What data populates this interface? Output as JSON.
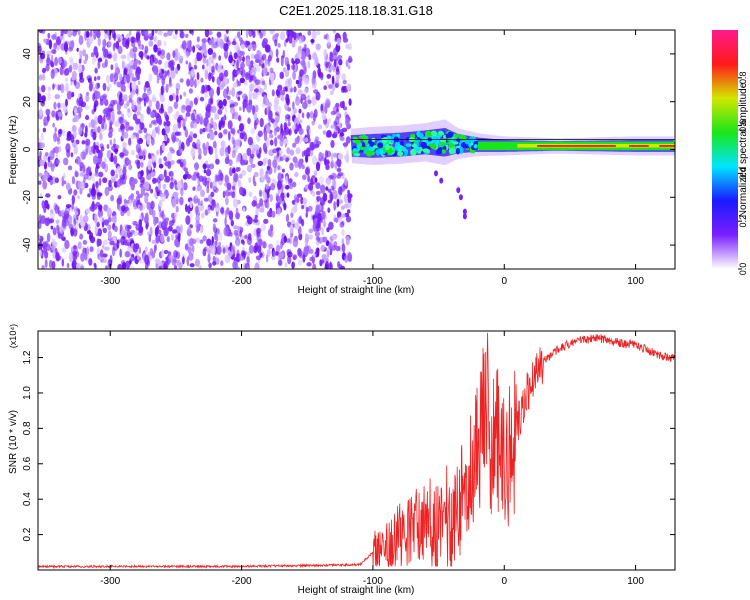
{
  "title": "C2E1.2025.118.18.31.G18",
  "chart_data": [
    {
      "type": "heatmap",
      "title": "C2E1.2025.118.18.31.G18",
      "xlabel": "Height of straight line (km)",
      "ylabel": "Frequency (Hz)",
      "xlim": [
        -355,
        130
      ],
      "ylim": [
        -50,
        50
      ],
      "x_ticks": [
        -300,
        -200,
        -100,
        0,
        100
      ],
      "y_ticks": [
        -40,
        -20,
        0,
        20,
        40
      ],
      "noise_region_x": [
        -355,
        -117
      ],
      "signal_band": [
        {
          "x": -117,
          "freq_center": 1.5,
          "halfwidth": 4.5
        },
        {
          "x": -100,
          "freq_center": 1.5,
          "halfwidth": 5
        },
        {
          "x": -80,
          "freq_center": 2,
          "halfwidth": 5
        },
        {
          "x": -60,
          "freq_center": 3,
          "halfwidth": 5
        },
        {
          "x": -45,
          "freq_center": 3,
          "halfwidth": 6
        },
        {
          "x": -35,
          "freq_center": 2.5,
          "halfwidth": 4
        },
        {
          "x": -20,
          "freq_center": 2,
          "halfwidth": 3
        },
        {
          "x": 0,
          "freq_center": 1.5,
          "halfwidth": 2.5
        },
        {
          "x": 40,
          "freq_center": 1.5,
          "halfwidth": 2
        },
        {
          "x": 100,
          "freq_center": 1.5,
          "halfwidth": 2.5
        },
        {
          "x": 130,
          "freq_center": 1.5,
          "halfwidth": 2.5
        }
      ],
      "colorbar": {
        "label": "Normalized spectral amplitude",
        "range": [
          0,
          1
        ],
        "ticks": [
          0.0,
          0.2,
          0.4,
          0.6,
          0.8
        ],
        "tick_labels": [
          "0.0",
          "0.2",
          "0.4",
          "0.6",
          "0.8"
        ],
        "colors": [
          "#ffffff",
          "#7a1fff",
          "#1a1aff",
          "#00e5ff",
          "#19e619",
          "#d4e600",
          "#ff1a1a",
          "#ff1a8c"
        ]
      }
    },
    {
      "type": "line",
      "xlabel": "Height of straight line (km)",
      "ylabel": "SNR (10 * v/v)",
      "yscale_label": "(x10⁴)",
      "xlim": [
        -355,
        130
      ],
      "ylim": [
        0,
        1.35
      ],
      "x_ticks": [
        -300,
        -200,
        -100,
        0,
        100
      ],
      "y_ticks": [
        0.2,
        0.4,
        0.6,
        0.8,
        1.0,
        1.2
      ],
      "color": "#ee2222",
      "series": [
        {
          "x": [
            -355,
            -300,
            -250,
            -200,
            -150,
            -110,
            -100,
            -95,
            -90,
            -85,
            -80,
            -75,
            -70,
            -65,
            -60,
            -55,
            -50,
            -45,
            -40,
            -35,
            -30,
            -25,
            -20,
            -15,
            -12,
            -10,
            -5,
            0,
            5,
            10,
            15,
            20,
            25,
            30,
            40,
            50,
            60,
            70,
            80,
            90,
            100,
            110,
            120,
            130
          ],
          "y": [
            0.02,
            0.02,
            0.02,
            0.02,
            0.025,
            0.03,
            0.1,
            0.13,
            0.15,
            0.18,
            0.2,
            0.22,
            0.24,
            0.26,
            0.25,
            0.27,
            0.26,
            0.3,
            0.28,
            0.35,
            0.48,
            0.6,
            0.7,
            0.85,
            1.1,
            0.6,
            0.7,
            0.75,
            0.6,
            0.8,
            0.95,
            1.05,
            1.12,
            1.18,
            1.24,
            1.28,
            1.3,
            1.31,
            1.3,
            1.28,
            1.27,
            1.24,
            1.21,
            1.2
          ]
        }
      ]
    }
  ]
}
